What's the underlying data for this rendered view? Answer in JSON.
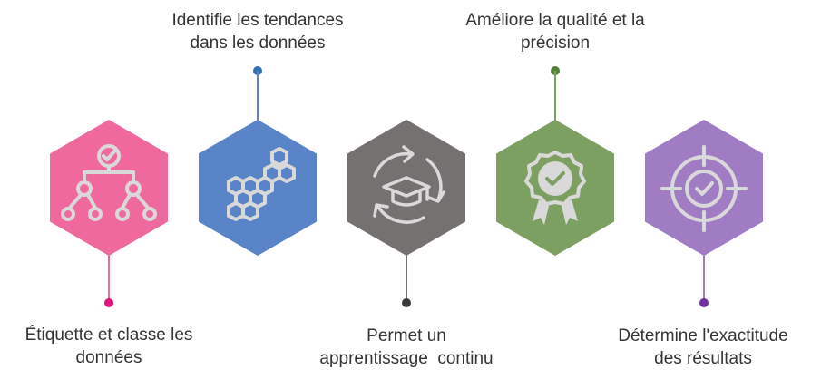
{
  "steps": [
    {
      "name": "etiquette",
      "lines": [
        "Étiquette et classe les",
        "données"
      ],
      "color": "#f0699e",
      "dot_color": "#e2157a",
      "icon": "hierarchy-check-icon"
    },
    {
      "name": "tendances",
      "lines": [
        "Identifie les tendances",
        "dans les données"
      ],
      "color": "#5a84c8",
      "dot_color": "#2f6fb5",
      "icon": "honeycomb-icon"
    },
    {
      "name": "apprentissage",
      "lines": [
        "Permet un",
        "apprentissage  continu"
      ],
      "color": "#767171",
      "dot_color": "#3a3a3a",
      "icon": "learning-cycle-icon"
    },
    {
      "name": "qualite",
      "lines": [
        "Améliore la qualité et la",
        "précision"
      ],
      "color": "#7c9f62",
      "dot_color": "#538135",
      "icon": "quality-badge-icon"
    },
    {
      "name": "exactitude",
      "lines": [
        "Détermine l'exactitude",
        "des résultats"
      ],
      "color": "#a07cc5",
      "dot_color": "#7030a0",
      "icon": "target-check-icon"
    }
  ],
  "icon_color": "#d9d9d9"
}
